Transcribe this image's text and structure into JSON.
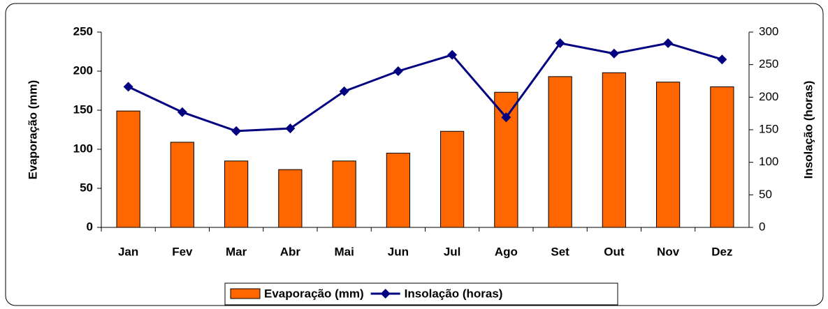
{
  "chart_data": {
    "type": "bar",
    "categories": [
      "Jan",
      "Fev",
      "Mar",
      "Abr",
      "Mai",
      "Jun",
      "Jul",
      "Ago",
      "Set",
      "Out",
      "Nov",
      "Dez"
    ],
    "series": [
      {
        "name": "Evaporação (mm)",
        "type": "bar",
        "color": "#ff6600",
        "values": [
          149,
          109,
          85,
          74,
          85,
          95,
          123,
          173,
          193,
          198,
          186,
          180
        ]
      },
      {
        "name": "Insolação (horas)",
        "type": "line",
        "axis": "y2",
        "color": "#000080",
        "values": [
          216,
          177,
          148,
          152,
          209,
          240,
          265,
          169,
          283,
          267,
          283,
          258
        ]
      }
    ],
    "ylabel": "Evaporação (mm)",
    "y2label": "Insolação (horas)",
    "ylim": [
      0,
      250
    ],
    "yticks": [
      0,
      50,
      100,
      150,
      200,
      250
    ],
    "y2lim": [
      0,
      300
    ],
    "y2ticks": [
      0,
      50,
      100,
      150,
      200,
      250,
      300
    ],
    "legend": "bottom"
  }
}
